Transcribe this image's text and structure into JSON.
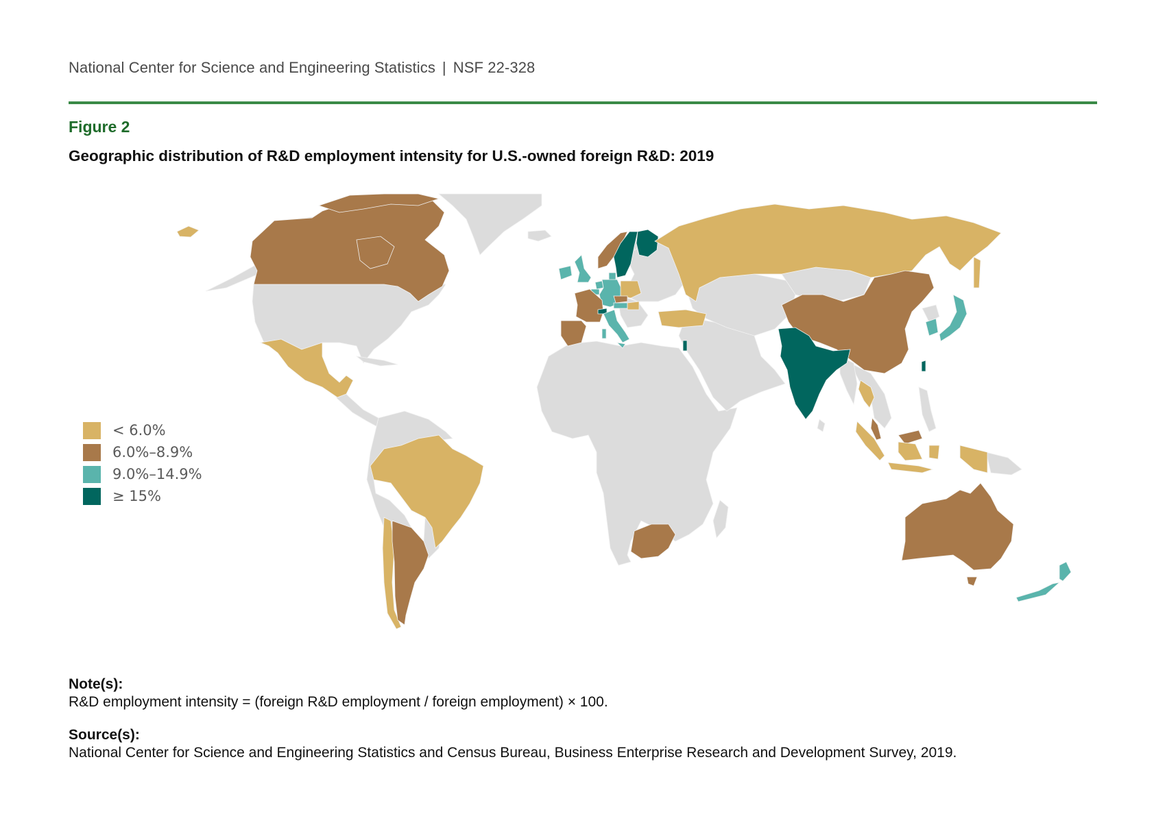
{
  "header": {
    "org": "National Center for Science and Engineering Statistics",
    "separator": "|",
    "report": "NSF 22-328"
  },
  "figure_label": "Figure 2",
  "title": "Geographic distribution of R&D employment intensity for U.S.-owned foreign R&D: 2019",
  "colors": {
    "rule": "#3a8a47",
    "no_data": "#dcdcdc",
    "border": "#f2f2f2"
  },
  "chart_data": {
    "type": "choropleth",
    "title": "Geographic distribution of R&D employment intensity for U.S.-owned foreign R&D: 2019",
    "legend_placement": "left",
    "categories": [
      {
        "id": "lt6",
        "label": "< 6.0%",
        "color": "#d8b365"
      },
      {
        "id": "6to8",
        "label": "6.0%–8.9%",
        "color": "#a8794a"
      },
      {
        "id": "9to14",
        "label": "9.0%–14.9%",
        "color": "#5ab4ac"
      },
      {
        "id": "ge15",
        "label": "≥ 15%",
        "color": "#01665e"
      }
    ],
    "countries": {
      "Canada": "6to8",
      "Mexico": "lt6",
      "Brazil": "lt6",
      "Chile": "lt6",
      "Argentina": "6to8",
      "United Kingdom": "9to14",
      "Ireland": "9to14",
      "Germany": "9to14",
      "Netherlands": "9to14",
      "Belgium": "9to14",
      "Denmark": "9to14",
      "Austria": "9to14",
      "Italy": "9to14",
      "Norway": "6to8",
      "France": "6to8",
      "Spain": "6to8",
      "Czechia": "6to8",
      "Sweden": "ge15",
      "Finland": "ge15",
      "Switzerland": "ge15",
      "Israel": "ge15",
      "Poland": "lt6",
      "Hungary": "lt6",
      "Russia": "lt6",
      "Turkey": "lt6",
      "China": "6to8",
      "Malaysia": "6to8",
      "India": "ge15",
      "Taiwan": "ge15",
      "Japan": "9to14",
      "South Korea": "9to14",
      "Thailand": "lt6",
      "Indonesia": "lt6",
      "Australia": "6to8",
      "New Zealand": "9to14",
      "South Africa": "6to8"
    }
  },
  "notes": {
    "note_label": "Note(s):",
    "note_text": "R&D employment intensity = (foreign R&D employment / foreign employment) × 100.",
    "source_label": "Source(s):",
    "source_text": "National Center for Science and Engineering Statistics and Census Bureau, Business Enterprise Research and Development Survey, 2019."
  }
}
